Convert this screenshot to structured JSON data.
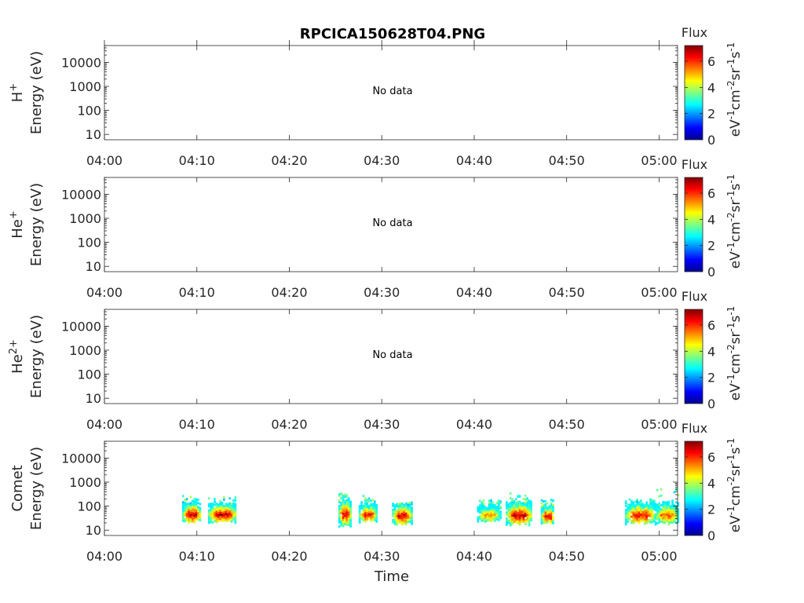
{
  "chart_data": {
    "type": "heatmap",
    "title": "RPCICA150628T04.PNG",
    "xlabel": "Time",
    "x_ticks": [
      "04:00",
      "04:10",
      "04:20",
      "04:30",
      "04:40",
      "04:50",
      "05:00"
    ],
    "x_range_minutes": [
      0,
      62
    ],
    "y_scale": "log",
    "y_ticks": [
      "10",
      "100",
      "1000",
      "10000"
    ],
    "y_range_eV": [
      6,
      50000
    ],
    "colormap": "jet",
    "colorbar": {
      "title": "Flux",
      "label": "eV-1cm-2sr-1s-1",
      "ticks": [
        "0",
        "2",
        "4",
        "6"
      ],
      "range": [
        0,
        7.2
      ]
    },
    "panels": [
      {
        "name_main": "H",
        "name_sup": "+",
        "ylabel": "Energy (eV)",
        "status": "No data",
        "blobs": []
      },
      {
        "name_main": "He",
        "name_sup": "+",
        "ylabel": "Energy (eV)",
        "status": "No data",
        "blobs": []
      },
      {
        "name_main": "He",
        "name_sup": "2+",
        "ylabel": "Energy (eV)",
        "status": "No data",
        "blobs": []
      },
      {
        "name_main": "Comet",
        "name_sup": "",
        "ylabel": "Energy (eV)",
        "status": "",
        "blobs": [
          {
            "t0": 8.4,
            "t1": 10.4,
            "e_low": 30,
            "e_high": 120,
            "e_peak": 48,
            "peak": 6.8,
            "top_low": 2.2,
            "e_top": 300
          },
          {
            "t0": 11.2,
            "t1": 14.2,
            "e_low": 28,
            "e_high": 110,
            "e_peak": 48,
            "peak": 6.8,
            "top_low": 2.2,
            "e_top": 260
          },
          {
            "t0": 25.3,
            "t1": 26.6,
            "e_low": 20,
            "e_high": 150,
            "e_peak": 50,
            "peak": 6.6,
            "top_low": 2.4,
            "e_top": 380
          },
          {
            "t0": 27.5,
            "t1": 29.4,
            "e_low": 30,
            "e_high": 110,
            "e_peak": 48,
            "peak": 6.4,
            "top_low": 2.4,
            "e_top": 350
          },
          {
            "t0": 31.1,
            "t1": 33.2,
            "e_low": 22,
            "e_high": 95,
            "e_peak": 42,
            "peak": 6.6,
            "top_low": 2.2,
            "e_top": 160
          },
          {
            "t0": 40.3,
            "t1": 42.8,
            "e_low": 28,
            "e_high": 90,
            "e_peak": 45,
            "peak": 5.4,
            "top_low": 2.2,
            "e_top": 200
          },
          {
            "t0": 43.4,
            "t1": 46.2,
            "e_low": 22,
            "e_high": 130,
            "e_peak": 45,
            "peak": 6.8,
            "top_low": 2.4,
            "e_top": 380
          },
          {
            "t0": 47.2,
            "t1": 48.6,
            "e_low": 25,
            "e_high": 90,
            "e_peak": 40,
            "peak": 6.6,
            "top_low": 2.2,
            "e_top": 200
          },
          {
            "t0": 56.3,
            "t1": 59.5,
            "e_low": 25,
            "e_high": 110,
            "e_peak": 45,
            "peak": 6.5,
            "top_low": 2.2,
            "e_top": 220
          },
          {
            "t0": 59.5,
            "t1": 62.0,
            "e_low": 25,
            "e_high": 110,
            "e_peak": 45,
            "peak": 5.8,
            "top_low": 2.2,
            "e_top": 600
          }
        ]
      }
    ]
  }
}
